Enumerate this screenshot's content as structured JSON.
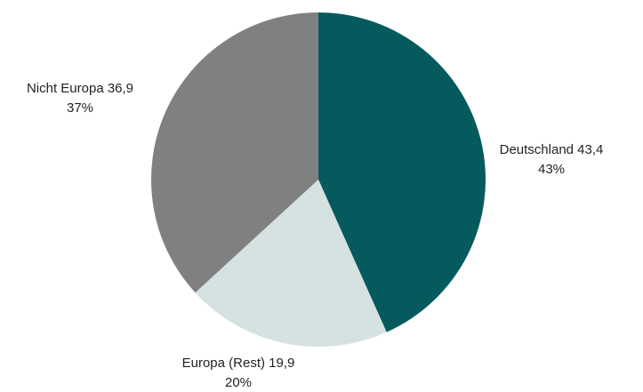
{
  "chart_data": {
    "type": "pie",
    "start_angle_deg": 0,
    "direction": "clockwise",
    "slices": [
      {
        "name": "Deutschland",
        "value": 43.4,
        "value_label": "43,4",
        "percent_label": "43%",
        "color": "#055a5e",
        "label_position": "right"
      },
      {
        "name": "Europa (Rest)",
        "value": 19.9,
        "value_label": "19,9",
        "percent_label": "20%",
        "color": "#d6e1e1",
        "label_position": "bottom"
      },
      {
        "name": "Nicht Europa",
        "value": 36.9,
        "value_label": "36,9",
        "percent_label": "37%",
        "color": "#808080",
        "label_position": "top-left"
      }
    ]
  }
}
